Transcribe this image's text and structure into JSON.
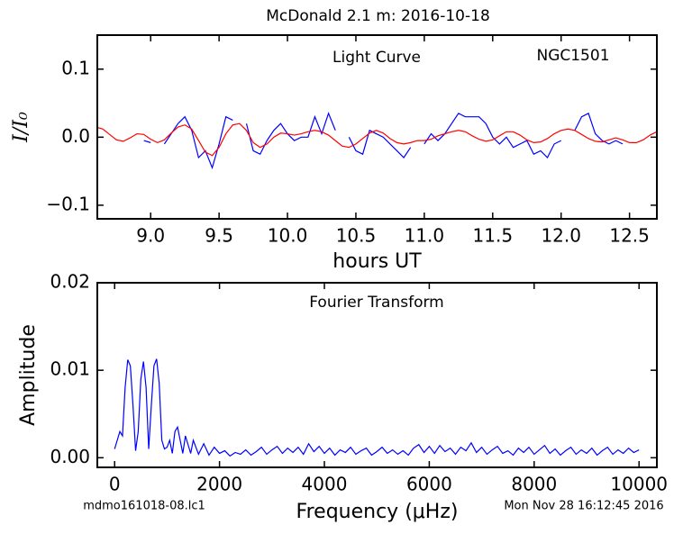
{
  "chart_data": [
    {
      "type": "line",
      "title": "McDonald 2.1 m:  2016-10-18",
      "xlabel": "hours UT",
      "ylabel": "I/I₀",
      "annotations": [
        "Light Curve",
        "NGC1501"
      ],
      "xlim": [
        8.61,
        12.7
      ],
      "ylim": [
        -0.12,
        0.15
      ],
      "xticks": [
        {
          "value": 9,
          "label": "9.0"
        },
        9.5,
        {
          "value": 10,
          "label": "10.0"
        },
        10.5,
        {
          "value": 11,
          "label": "11.0"
        },
        11.5,
        {
          "value": 12,
          "label": "12.0"
        },
        12.5
      ],
      "yticks": [
        {
          "value": -0.1,
          "label": "−0.1"
        },
        {
          "value": 0,
          "label": "0.0"
        },
        0.1
      ],
      "series": [
        {
          "color": "#0000ff",
          "x": [
            8.95,
            9.0,
            9.05,
            9.1,
            9.15,
            9.2,
            9.25,
            9.3,
            9.35,
            9.4,
            9.45,
            9.5,
            9.55,
            9.6,
            9.65,
            9.7,
            9.75,
            9.8,
            9.85,
            9.9,
            9.95,
            10.0,
            10.05,
            10.1,
            10.15,
            10.2,
            10.25,
            10.3,
            10.35,
            10.4,
            10.45,
            10.5,
            10.55,
            10.6,
            10.65,
            10.7,
            10.75,
            10.8,
            10.85,
            10.9,
            10.95,
            11.0,
            11.05,
            11.1,
            11.15,
            11.2,
            11.25,
            11.3,
            11.35,
            11.4,
            11.45,
            11.5,
            11.55,
            11.6,
            11.65,
            11.7,
            11.75,
            11.8,
            11.85,
            11.9,
            11.95,
            12.0,
            12.05,
            12.1,
            12.15,
            12.2,
            12.25,
            12.3,
            12.35,
            12.4,
            12.45
          ],
          "values": [
            -0.005,
            -0.008,
            null,
            -0.01,
            0.005,
            0.02,
            0.03,
            0.01,
            -0.03,
            -0.02,
            -0.045,
            -0.01,
            0.03,
            0.025,
            null,
            0.02,
            -0.02,
            -0.025,
            -0.005,
            0.01,
            0.02,
            0.005,
            -0.005,
            0,
            0,
            0.03,
            0.005,
            0.035,
            0.01,
            null,
            0,
            -0.02,
            -0.025,
            0.01,
            0.005,
            0,
            -0.01,
            -0.02,
            -0.03,
            -0.015,
            null,
            -0.01,
            0.005,
            -0.005,
            0.005,
            0.02,
            0.035,
            0.03,
            0.03,
            0.03,
            0.02,
            0,
            -0.01,
            0,
            -0.015,
            -0.01,
            -0.005,
            -0.025,
            -0.02,
            -0.03,
            -0.01,
            -0.005,
            null,
            0.01,
            0.03,
            0.035,
            0.005,
            -0.005,
            -0.01,
            -0.005,
            -0.01
          ]
        },
        {
          "color": "#ff0000",
          "x": [
            8.6,
            8.65,
            8.7,
            8.75,
            8.8,
            8.85,
            8.9,
            8.95,
            9.0,
            9.05,
            9.1,
            9.15,
            9.2,
            9.25,
            9.3,
            9.35,
            9.4,
            9.45,
            9.5,
            9.55,
            9.6,
            9.65,
            9.7,
            9.75,
            9.8,
            9.85,
            9.9,
            9.95,
            10.0,
            10.05,
            10.1,
            10.15,
            10.2,
            10.25,
            10.3,
            10.35,
            10.4,
            10.45,
            10.5,
            10.55,
            10.6,
            10.65,
            10.7,
            10.75,
            10.8,
            10.85,
            10.9,
            10.95,
            11.0,
            11.05,
            11.1,
            11.15,
            11.2,
            11.25,
            11.3,
            11.35,
            11.4,
            11.45,
            11.5,
            11.55,
            11.6,
            11.65,
            11.7,
            11.75,
            11.8,
            11.85,
            11.9,
            11.95,
            12.0,
            12.05,
            12.1,
            12.15,
            12.2,
            12.25,
            12.3,
            12.35,
            12.4,
            12.45,
            12.5,
            12.55,
            12.6,
            12.65,
            12.7
          ],
          "values": [
            0.015,
            0.012,
            0.004,
            -0.004,
            -0.006,
            -0.001,
            0.005,
            0.004,
            -0.003,
            -0.008,
            -0.004,
            0.006,
            0.015,
            0.018,
            0.012,
            -0.005,
            -0.022,
            -0.027,
            -0.015,
            0.005,
            0.018,
            0.02,
            0.01,
            -0.008,
            -0.015,
            -0.01,
            0,
            0.006,
            0.005,
            0.003,
            0.005,
            0.008,
            0.01,
            0.008,
            0.003,
            -0.005,
            -0.013,
            -0.015,
            -0.01,
            -0.002,
            0.006,
            0.01,
            0.006,
            -0.002,
            -0.008,
            -0.01,
            -0.008,
            -0.005,
            -0.005,
            -0.003,
            0.002,
            0.005,
            0.008,
            0.01,
            0.008,
            0.002,
            -0.003,
            -0.006,
            -0.004,
            0.002,
            0.008,
            0.008,
            0.003,
            -0.004,
            -0.008,
            -0.007,
            -0.002,
            0.005,
            0.01,
            0.012,
            0.01,
            0.004,
            -0.002,
            -0.006,
            -0.007,
            -0.004,
            -0.001,
            -0.004,
            -0.008,
            -0.008,
            -0.004,
            0.003,
            0.008
          ]
        }
      ]
    },
    {
      "type": "line",
      "xlabel": "Frequency (μHz)",
      "ylabel": "Amplitude",
      "annotations": [
        "Fourier Transform"
      ],
      "footnotes": [
        "mdmo161018-08.lc1",
        "Mon Nov 28 16:12:45 2016"
      ],
      "xlim": [
        -330,
        10340
      ],
      "ylim": [
        -0.0011,
        0.02
      ],
      "xticks": [
        0,
        2000,
        4000,
        6000,
        8000,
        10000
      ],
      "yticks": [
        {
          "value": 0,
          "label": "0.00"
        },
        {
          "value": 0.01,
          "label": "0.01"
        },
        {
          "value": 0.02,
          "label": "0.02"
        }
      ],
      "series": [
        {
          "color": "#0000ff",
          "x": [
            0,
            50,
            100,
            150,
            200,
            250,
            300,
            350,
            400,
            450,
            500,
            550,
            600,
            650,
            700,
            750,
            800,
            850,
            900,
            950,
            1000,
            1050,
            1100,
            1150,
            1200,
            1250,
            1300,
            1350,
            1400,
            1450,
            1500,
            1600,
            1700,
            1800,
            1900,
            2000,
            2100,
            2200,
            2300,
            2400,
            2500,
            2600,
            2700,
            2800,
            2900,
            3000,
            3100,
            3200,
            3300,
            3400,
            3500,
            3600,
            3700,
            3800,
            3900,
            4000,
            4100,
            4200,
            4300,
            4400,
            4500,
            4600,
            4700,
            4800,
            4900,
            5000,
            5100,
            5200,
            5300,
            5400,
            5500,
            5600,
            5700,
            5800,
            5900,
            6000,
            6100,
            6200,
            6300,
            6400,
            6500,
            6600,
            6700,
            6800,
            6900,
            7000,
            7100,
            7200,
            7300,
            7400,
            7500,
            7600,
            7700,
            7800,
            7900,
            8000,
            8100,
            8200,
            8300,
            8400,
            8500,
            8600,
            8700,
            8800,
            8900,
            9000,
            9100,
            9200,
            9300,
            9400,
            9500,
            9600,
            9700,
            9800,
            9900,
            10000
          ],
          "values": [
            0.001,
            0.002,
            0.003,
            0.0025,
            0.008,
            0.0112,
            0.0105,
            0.006,
            0.0008,
            0.003,
            0.009,
            0.011,
            0.008,
            0.001,
            0.006,
            0.0105,
            0.0113,
            0.0085,
            0.002,
            0.001,
            0.0012,
            0.002,
            0.0005,
            0.003,
            0.0035,
            0.002,
            0.0005,
            0.0025,
            0.0015,
            0.0005,
            0.002,
            0.0004,
            0.0016,
            0.0003,
            0.0012,
            0.0005,
            0.0008,
            0.0002,
            0.0006,
            0.0004,
            0.0009,
            0.0003,
            0.0007,
            0.0012,
            0.0004,
            0.0009,
            0.0013,
            0.0005,
            0.0011,
            0.0006,
            0.0012,
            0.0004,
            0.0016,
            0.0007,
            0.0013,
            0.0005,
            0.0011,
            0.0003,
            0.0009,
            0.0006,
            0.0012,
            0.0004,
            0.0008,
            0.0011,
            0.0003,
            0.0007,
            0.0012,
            0.0005,
            0.0009,
            0.0004,
            0.0008,
            0.0003,
            0.0011,
            0.0015,
            0.0006,
            0.0013,
            0.0005,
            0.0014,
            0.0007,
            0.0011,
            0.0004,
            0.0012,
            0.0008,
            0.0017,
            0.0006,
            0.0012,
            0.0004,
            0.0009,
            0.0013,
            0.0005,
            0.0008,
            0.0003,
            0.0011,
            0.0006,
            0.0012,
            0.0004,
            0.0009,
            0.0014,
            0.0005,
            0.001,
            0.0003,
            0.0008,
            0.0012,
            0.0004,
            0.0009,
            0.0005,
            0.0011,
            0.0003,
            0.0008,
            0.0012,
            0.0004,
            0.0009,
            0.0005,
            0.0011,
            0.0006,
            0.0009
          ]
        }
      ]
    }
  ]
}
